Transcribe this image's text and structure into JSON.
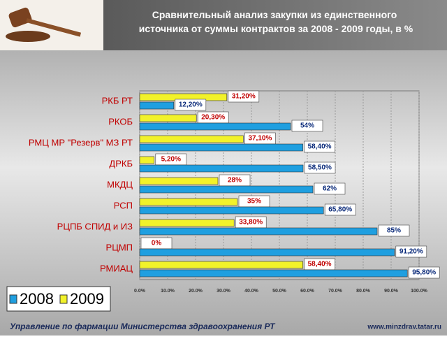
{
  "chart_data": {
    "type": "bar",
    "orientation": "horizontal",
    "title": "Сравнительный анализ закупки из единственного источника от суммы контрактов за 2008 - 2009 годы, в %",
    "categories": [
      "РКБ РТ",
      "РКОБ",
      "РМЦ МР \"Резерв\" МЗ РТ",
      "ДРКБ",
      "МКДЦ",
      "РСП",
      "РЦПБ СПИД и ИЗ",
      "РЦМП",
      "РМИАЦ"
    ],
    "series": [
      {
        "name": "2008",
        "color": "#1f9fe0",
        "values": [
          12.2,
          54,
          58.4,
          58.5,
          62,
          65.8,
          85,
          91.2,
          95.8
        ],
        "value_labels": [
          "12,20%",
          "54%",
          "58,40%",
          "58,50%",
          "62%",
          "65,80%",
          "85%",
          "91,20%",
          "95,80%"
        ]
      },
      {
        "name": "2009",
        "color": "#f2f22a",
        "values": [
          31.2,
          20.3,
          37.1,
          5.2,
          28,
          35,
          33.8,
          0,
          58.4
        ],
        "value_labels": [
          "31,20%",
          "20,30%",
          "37,10%",
          "5,20%",
          "28%",
          "35%",
          "33,80%",
          "0%",
          "58,40%"
        ]
      }
    ],
    "xlim": [
      0,
      100
    ],
    "xticks": [
      {
        "value": 0,
        "label": "0.0%"
      },
      {
        "value": 10,
        "label": "10.0%"
      },
      {
        "value": 20,
        "label": "20.0%"
      },
      {
        "value": 30,
        "label": "30.0%"
      },
      {
        "value": 40,
        "label": "40.0%"
      },
      {
        "value": 50,
        "label": "50.0%"
      },
      {
        "value": 60,
        "label": "60.0%"
      },
      {
        "value": 70,
        "label": "70.0%"
      },
      {
        "value": 80,
        "label": "80.0%"
      },
      {
        "value": 90,
        "label": "90.0%"
      },
      {
        "value": 100,
        "label": "100.0%"
      }
    ],
    "grid": true,
    "legend": "bottom-left",
    "footer_left": "Управление по фармации Министерства здравоохранения РТ",
    "footer_right": "www.minzdrav.tatar.ru"
  }
}
